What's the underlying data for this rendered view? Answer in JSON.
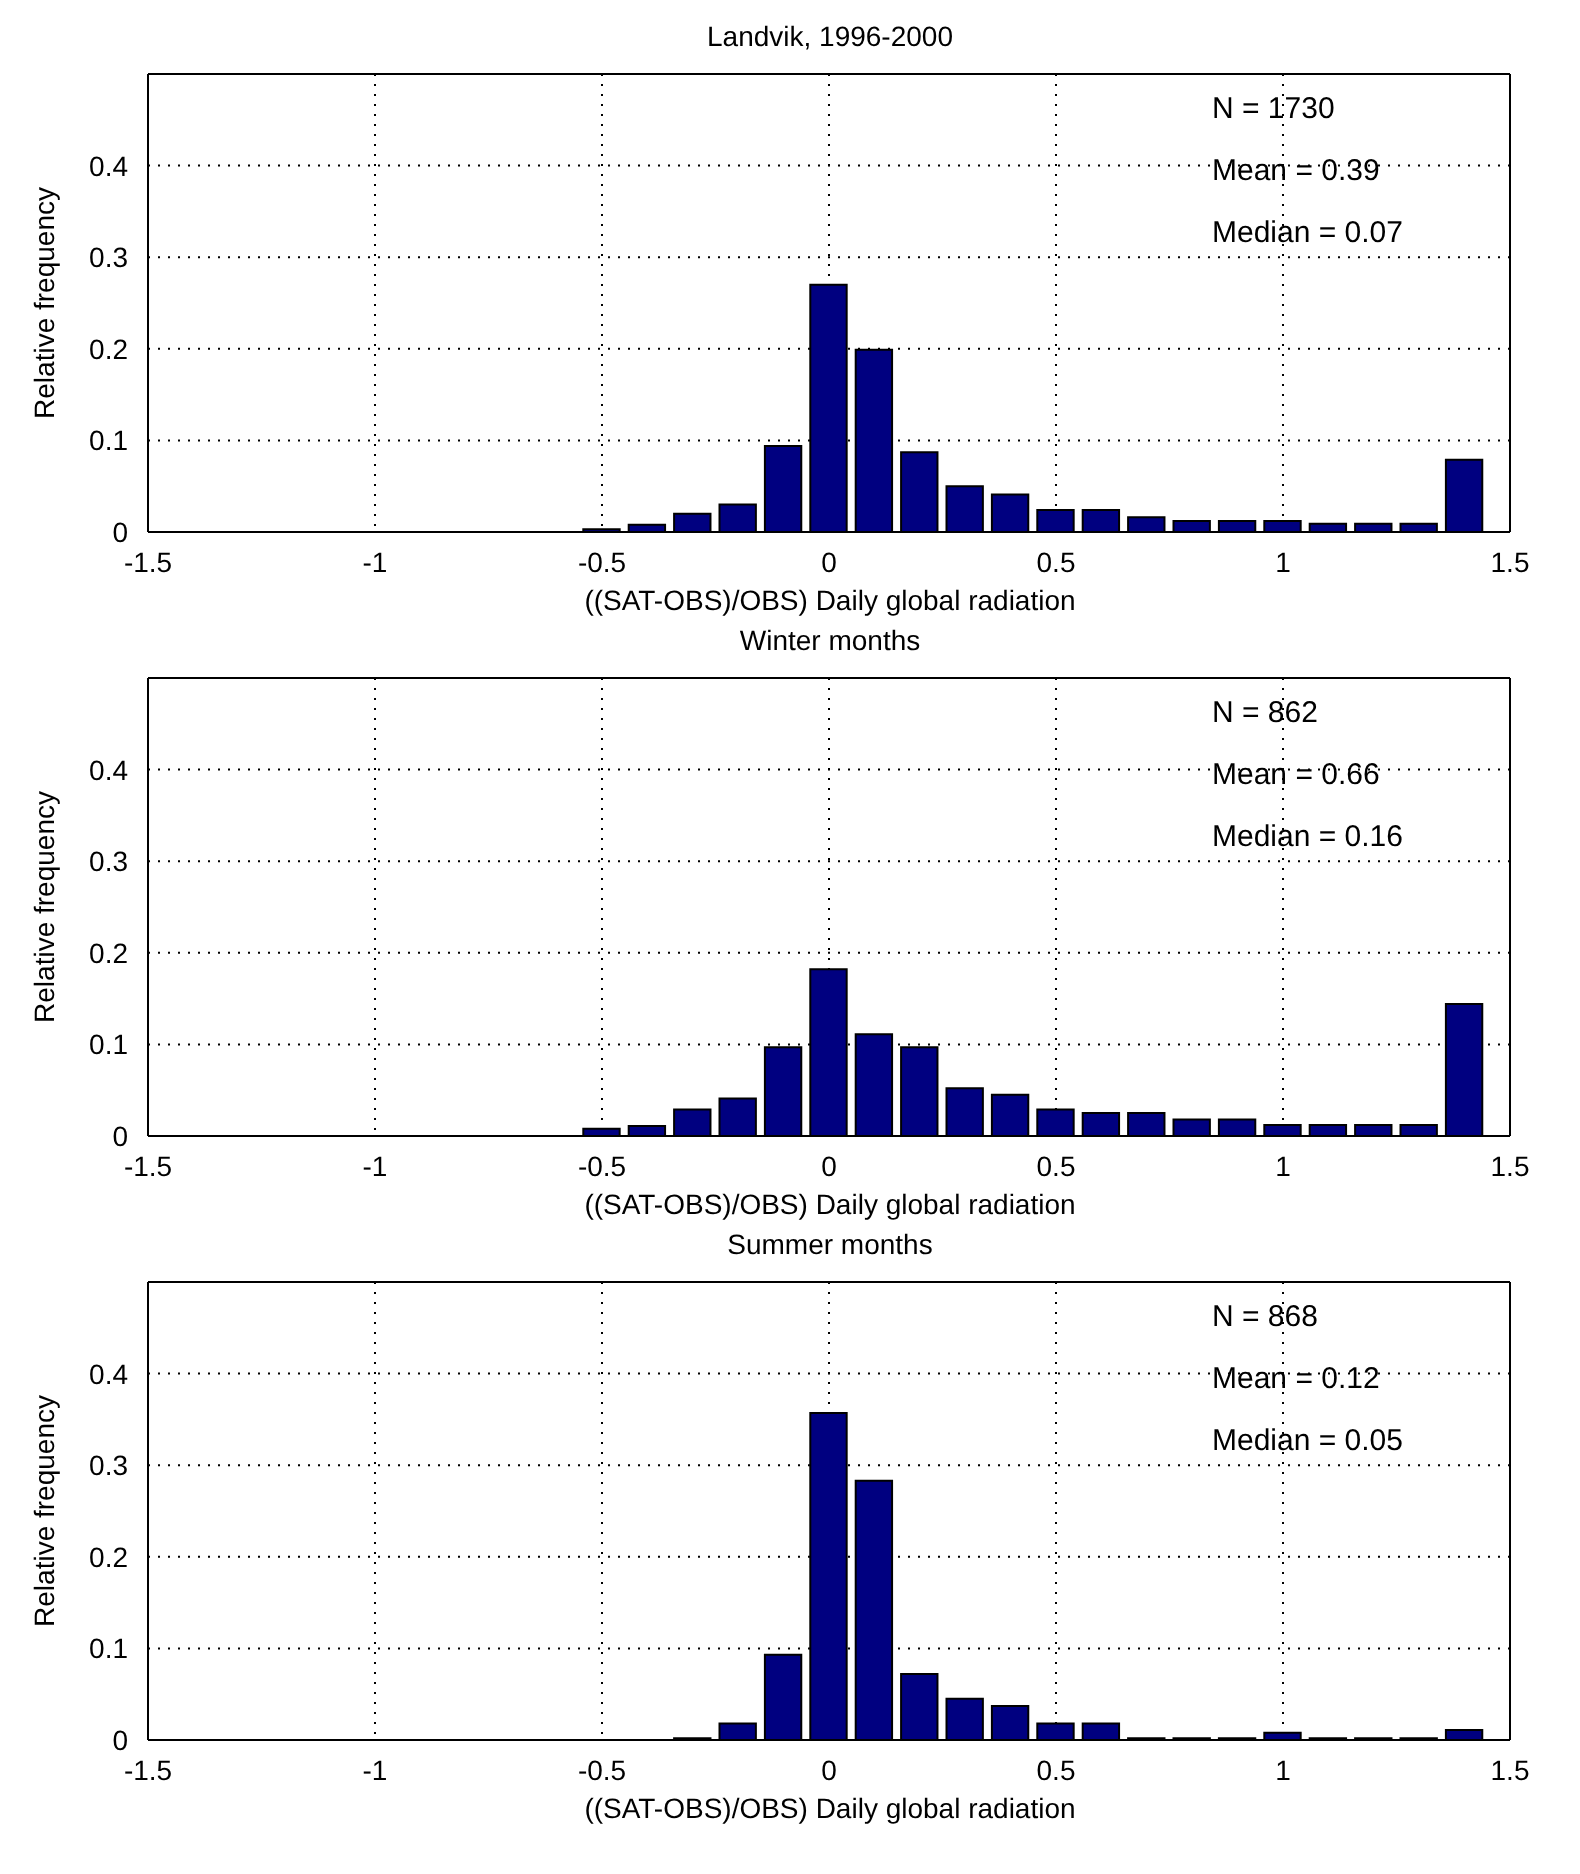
{
  "chart_data": [
    {
      "type": "histogram",
      "title": "Landvik, 1996-2000",
      "xlabel": "((SAT-OBS)/OBS) Daily global radiation",
      "ylabel": "Relative frequency",
      "bins": [
        -0.55,
        -0.45,
        -0.35,
        -0.25,
        -0.15,
        -0.05,
        0.05,
        0.15,
        0.25,
        0.35,
        0.45,
        0.55,
        0.65,
        0.75,
        0.85,
        0.95,
        1.05,
        1.15,
        1.25,
        1.35,
        1.45
      ],
      "values": [
        0.003,
        0.008,
        0.02,
        0.03,
        0.094,
        0.27,
        0.199,
        0.087,
        0.05,
        0.041,
        0.024,
        0.024,
        0.016,
        0.012,
        0.012,
        0.012,
        0.009,
        0.009,
        0.009,
        0.079
      ],
      "color": "#000080",
      "xlim": [
        -1.5,
        1.5
      ],
      "xticks": [
        -1.5,
        -1,
        -0.5,
        0,
        0.5,
        1,
        1.5
      ],
      "ylim": [
        0,
        0.5
      ],
      "yticks": [
        0,
        0.1,
        0.2,
        0.3,
        0.4
      ],
      "grid": true,
      "annotations": [
        "N = 1730",
        "Mean = 0.39",
        "Median = 0.07"
      ]
    },
    {
      "type": "histogram",
      "title": "Winter months",
      "xlabel": "((SAT-OBS)/OBS) Daily global radiation",
      "ylabel": "Relative frequency",
      "bins": [
        -0.55,
        -0.45,
        -0.35,
        -0.25,
        -0.15,
        -0.05,
        0.05,
        0.15,
        0.25,
        0.35,
        0.45,
        0.55,
        0.65,
        0.75,
        0.85,
        0.95,
        1.05,
        1.15,
        1.25,
        1.35,
        1.45
      ],
      "values": [
        0.008,
        0.011,
        0.029,
        0.041,
        0.097,
        0.182,
        0.111,
        0.097,
        0.052,
        0.045,
        0.029,
        0.025,
        0.025,
        0.018,
        0.018,
        0.012,
        0.012,
        0.012,
        0.012,
        0.144
      ],
      "color": "#000080",
      "xlim": [
        -1.5,
        1.5
      ],
      "xticks": [
        -1.5,
        -1,
        -0.5,
        0,
        0.5,
        1,
        1.5
      ],
      "ylim": [
        0,
        0.5
      ],
      "yticks": [
        0,
        0.1,
        0.2,
        0.3,
        0.4
      ],
      "grid": true,
      "annotations": [
        "N = 862",
        "Mean = 0.66",
        "Median = 0.16"
      ]
    },
    {
      "type": "histogram",
      "title": "Summer months",
      "xlabel": "((SAT-OBS)/OBS) Daily global radiation",
      "ylabel": "Relative frequency",
      "bins": [
        -0.55,
        -0.45,
        -0.35,
        -0.25,
        -0.15,
        -0.05,
        0.05,
        0.15,
        0.25,
        0.35,
        0.45,
        0.55,
        0.65,
        0.75,
        0.85,
        0.95,
        1.05,
        1.15,
        1.25,
        1.35,
        1.45
      ],
      "values": [
        0,
        0,
        0.002,
        0.018,
        0.093,
        0.357,
        0.283,
        0.072,
        0.045,
        0.037,
        0.018,
        0.018,
        0.002,
        0.002,
        0.002,
        0.008,
        0.002,
        0.002,
        0.002,
        0.011
      ],
      "color": "#000080",
      "xlim": [
        -1.5,
        1.5
      ],
      "xticks": [
        -1.5,
        -1,
        -0.5,
        0,
        0.5,
        1,
        1.5
      ],
      "ylim": [
        0,
        0.5
      ],
      "yticks": [
        0,
        0.1,
        0.2,
        0.3,
        0.4
      ],
      "grid": true,
      "annotations": [
        "N = 868",
        "Mean = 0.12",
        "Median = 0.05"
      ]
    }
  ]
}
